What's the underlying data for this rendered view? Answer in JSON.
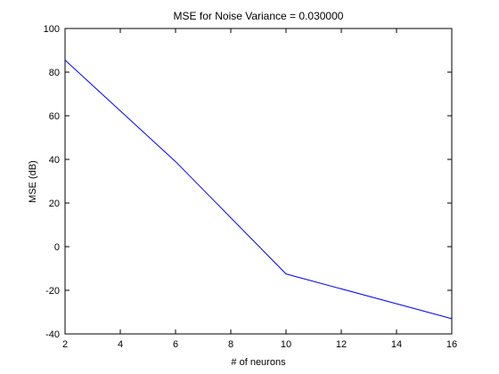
{
  "chart_data": {
    "type": "line",
    "title": "MSE for Noise Variance = 0.030000",
    "xlabel": "# of neurons",
    "ylabel": "MSE (dB)",
    "xlim": [
      2,
      16
    ],
    "ylim": [
      -40,
      100
    ],
    "xticks": [
      2,
      4,
      6,
      8,
      10,
      12,
      14,
      16
    ],
    "yticks": [
      -40,
      -20,
      0,
      20,
      40,
      60,
      80,
      100
    ],
    "grid": false,
    "series": [
      {
        "name": "MSE",
        "color": "#0000ff",
        "x": [
          2,
          6,
          10,
          16
        ],
        "y": [
          85.5,
          39,
          -12.5,
          -33
        ]
      }
    ]
  }
}
